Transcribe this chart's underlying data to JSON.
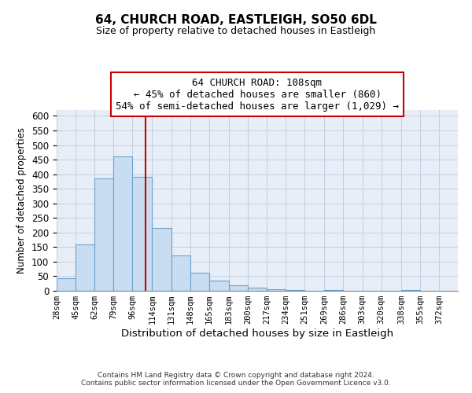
{
  "title": "64, CHURCH ROAD, EASTLEIGH, SO50 6DL",
  "subtitle": "Size of property relative to detached houses in Eastleigh",
  "xlabel": "Distribution of detached houses by size in Eastleigh",
  "ylabel": "Number of detached properties",
  "bin_labels": [
    "28sqm",
    "45sqm",
    "62sqm",
    "79sqm",
    "96sqm",
    "114sqm",
    "131sqm",
    "148sqm",
    "165sqm",
    "183sqm",
    "200sqm",
    "217sqm",
    "234sqm",
    "251sqm",
    "269sqm",
    "286sqm",
    "303sqm",
    "320sqm",
    "338sqm",
    "355sqm",
    "372sqm"
  ],
  "bin_edges": [
    28,
    45,
    62,
    79,
    96,
    114,
    131,
    148,
    165,
    183,
    200,
    217,
    234,
    251,
    269,
    286,
    303,
    320,
    338,
    355,
    372,
    389
  ],
  "bar_values": [
    42,
    158,
    385,
    460,
    390,
    215,
    120,
    62,
    35,
    18,
    10,
    6,
    2,
    0,
    4,
    0,
    0,
    0,
    2,
    0,
    0
  ],
  "bar_color": "#c9ddf2",
  "bar_edge_color": "#6ca0cc",
  "red_line_x": 108,
  "ylim": [
    0,
    620
  ],
  "yticks": [
    0,
    50,
    100,
    150,
    200,
    250,
    300,
    350,
    400,
    450,
    500,
    550,
    600
  ],
  "annotation_title": "64 CHURCH ROAD: 108sqm",
  "annotation_line1": "← 45% of detached houses are smaller (860)",
  "annotation_line2": "54% of semi-detached houses are larger (1,029) →",
  "annotation_box_color": "#ffffff",
  "annotation_box_edge": "#cc0000",
  "grid_color": "#c0cfe0",
  "background_color": "#e8eef8",
  "footer1": "Contains HM Land Registry data © Crown copyright and database right 2024.",
  "footer2": "Contains public sector information licensed under the Open Government Licence v3.0."
}
